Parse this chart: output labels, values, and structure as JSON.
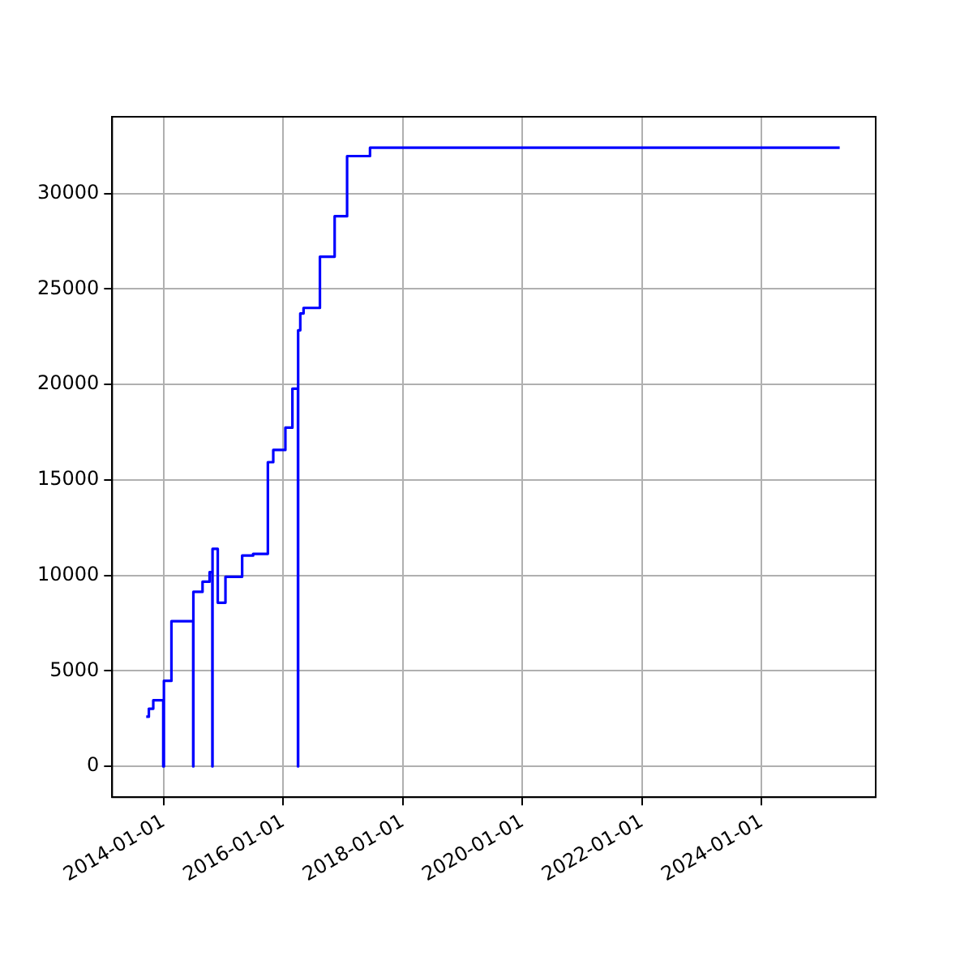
{
  "chart_data": {
    "type": "step",
    "x": [
      "2013-09-16",
      "2013-10-02",
      "2013-10-29",
      "2013-12-29",
      "2014-01-02",
      "2014-02-17",
      "2014-06-30",
      "2014-07-01",
      "2014-08-26",
      "2014-10-08",
      "2014-10-25",
      "2014-10-26",
      "2014-11-27",
      "2015-01-13",
      "2015-04-25",
      "2015-07-01",
      "2015-09-29",
      "2015-11-01",
      "2016-01-14",
      "2016-02-26",
      "2016-03-31",
      "2016-04-01",
      "2016-04-14",
      "2016-05-04",
      "2016-08-12",
      "2016-11-10",
      "2017-01-25",
      "2017-06-14",
      "2025-04-22"
    ],
    "series": [
      {
        "color": "#0000ff",
        "values": [
          2600,
          3020,
          3460,
          0,
          4480,
          7600,
          0,
          9140,
          9670,
          10170,
          0,
          11390,
          8570,
          9930,
          11040,
          11130,
          15930,
          16570,
          17740,
          19780,
          0,
          22840,
          23720,
          24010,
          26690,
          28810,
          31960,
          32400,
          32400
        ]
      }
    ],
    "xlim": [
      "2013-02-20",
      "2025-11-28"
    ],
    "xticks": [
      "2014-01-01",
      "2016-01-01",
      "2018-01-01",
      "2020-01-01",
      "2022-01-01",
      "2024-01-01"
    ],
    "ylim": [
      -1620,
      34020
    ],
    "yticks": [
      0,
      5000,
      10000,
      15000,
      20000,
      25000,
      30000
    ],
    "grid": true,
    "legend": false
  }
}
